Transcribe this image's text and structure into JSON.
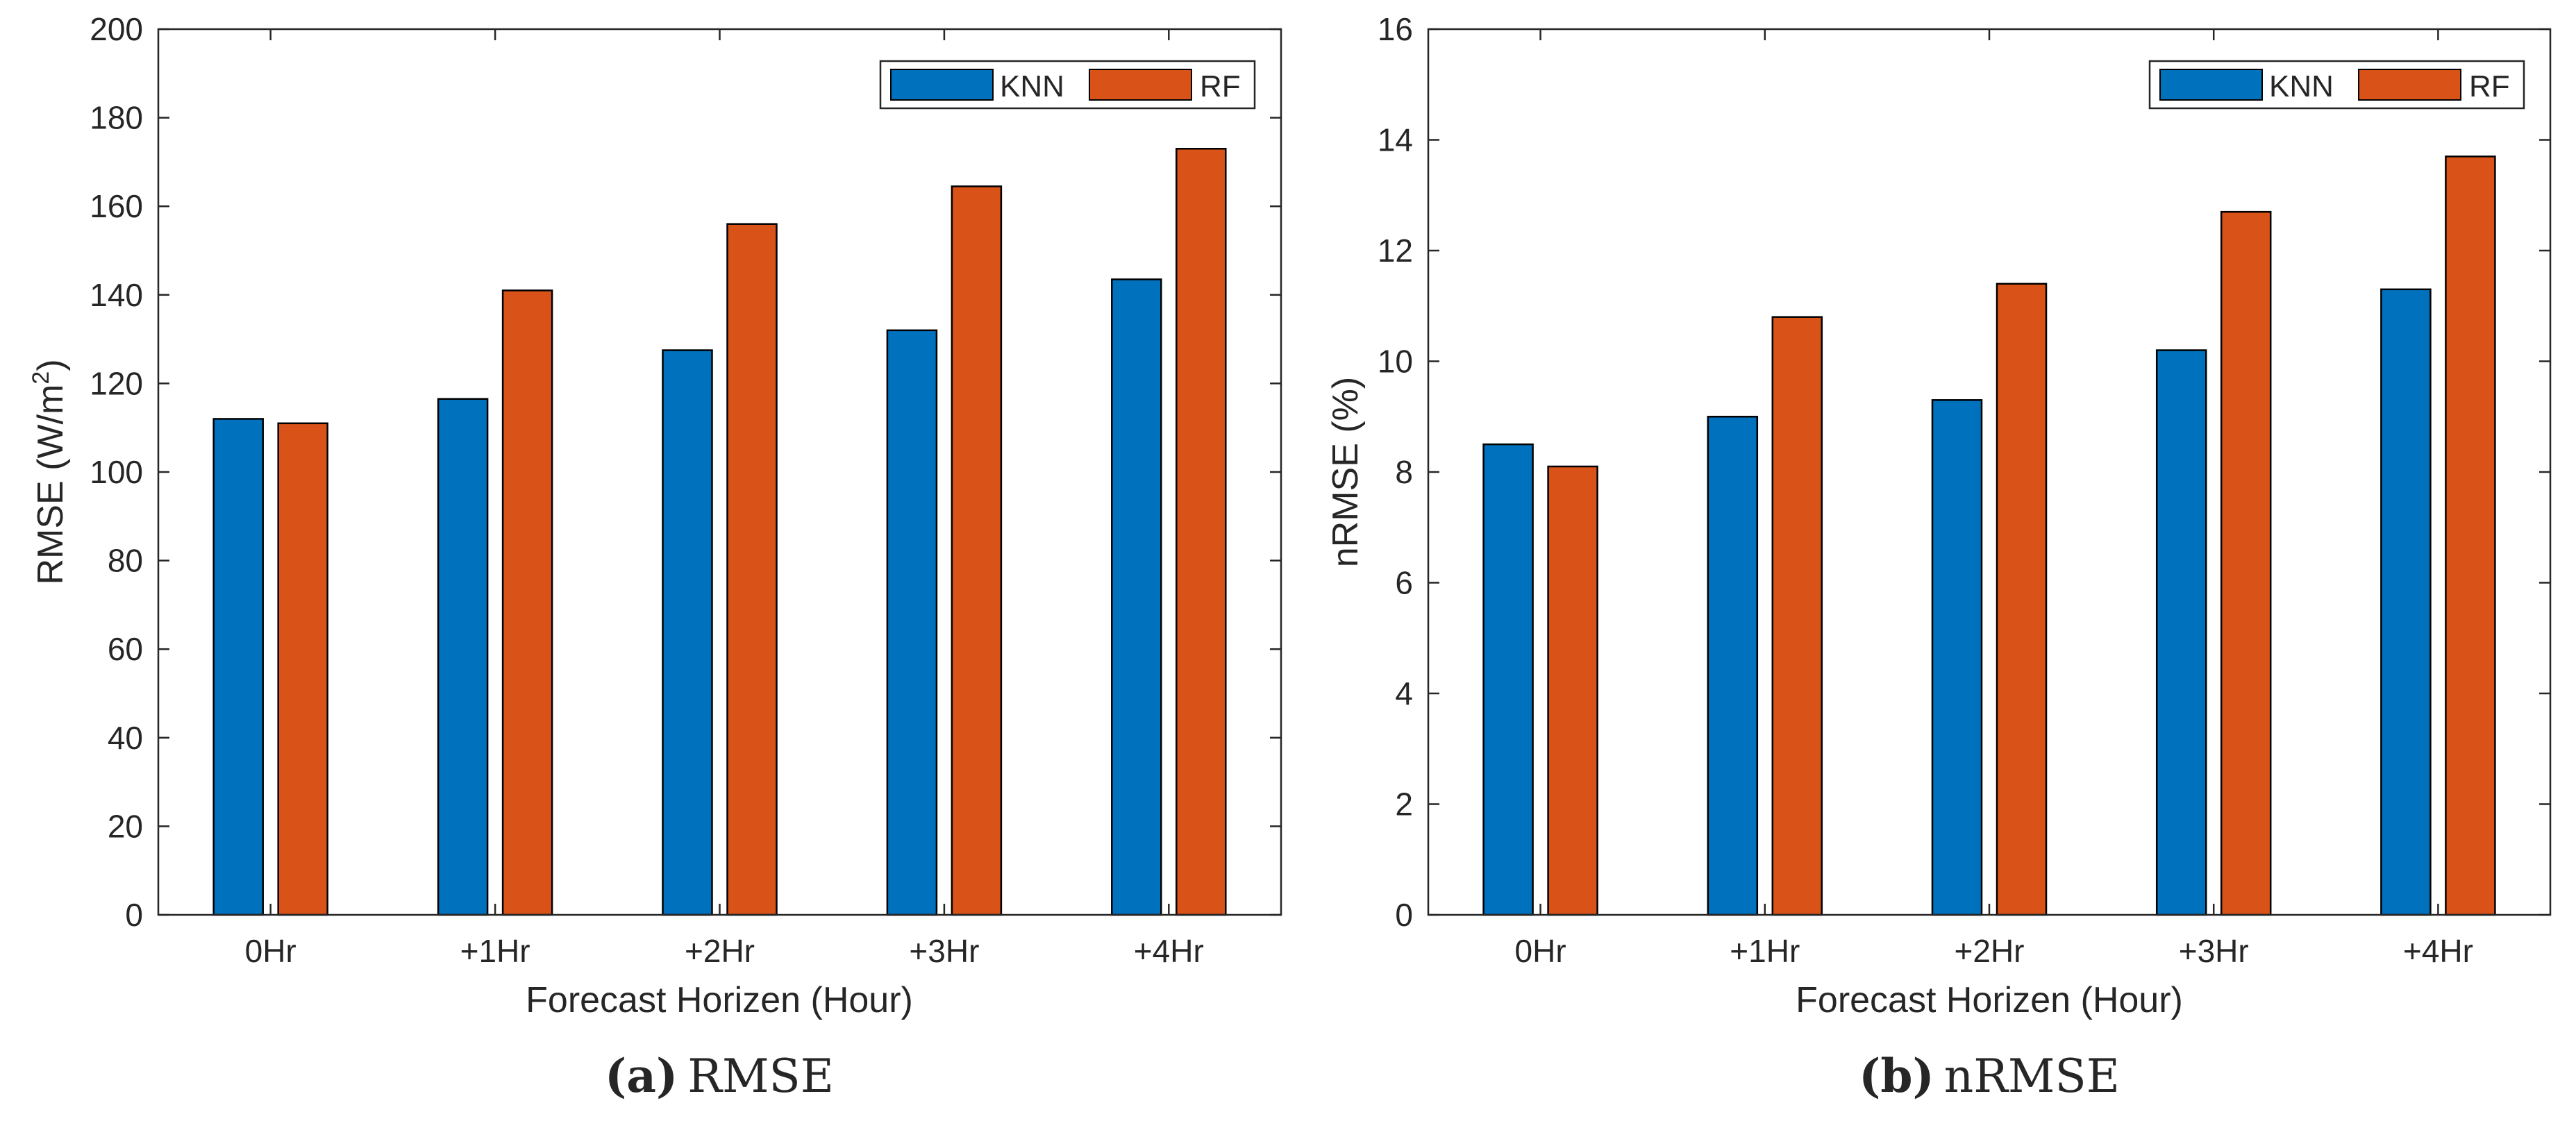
{
  "colors": {
    "knn": "#0072BD",
    "rf": "#D95319",
    "axis": "#262626",
    "background": "#FFFFFF"
  },
  "chart_data": [
    {
      "type": "bar",
      "id": "rmse",
      "categories": [
        "0Hr",
        "+1Hr",
        "+2Hr",
        "+3Hr",
        "+4Hr"
      ],
      "series": [
        {
          "name": "KNN",
          "values": [
            112,
            116.5,
            127.5,
            132,
            143.5
          ]
        },
        {
          "name": "RF",
          "values": [
            111,
            141,
            156,
            164.5,
            173
          ]
        }
      ],
      "title": "",
      "xlabel": "Forecast Horizen (Hour)",
      "ylabel_main": "RMSE (W/m",
      "ylabel_sup": "2",
      "ylabel_tail": ")",
      "ylim": [
        0,
        200
      ],
      "yticks": [
        0,
        20,
        40,
        60,
        80,
        100,
        120,
        140,
        160,
        180,
        200
      ],
      "legend": "top-right",
      "grid": false,
      "caption_label": "(a)",
      "caption_text": "RMSE"
    },
    {
      "type": "bar",
      "id": "nrmse",
      "categories": [
        "0Hr",
        "+1Hr",
        "+2Hr",
        "+3Hr",
        "+4Hr"
      ],
      "series": [
        {
          "name": "KNN",
          "values": [
            8.5,
            9.0,
            9.3,
            10.2,
            11.3
          ]
        },
        {
          "name": "RF",
          "values": [
            8.1,
            10.8,
            11.4,
            12.7,
            13.7
          ]
        }
      ],
      "title": "",
      "xlabel": "Forecast Horizen (Hour)",
      "ylabel_main": "nRMSE (%)",
      "ylabel_sup": "",
      "ylabel_tail": "",
      "ylim": [
        0,
        16
      ],
      "yticks": [
        0,
        2,
        4,
        6,
        8,
        10,
        12,
        14,
        16
      ],
      "legend": "top-right",
      "grid": false,
      "caption_label": "(b)",
      "caption_text": "nRMSE"
    }
  ]
}
